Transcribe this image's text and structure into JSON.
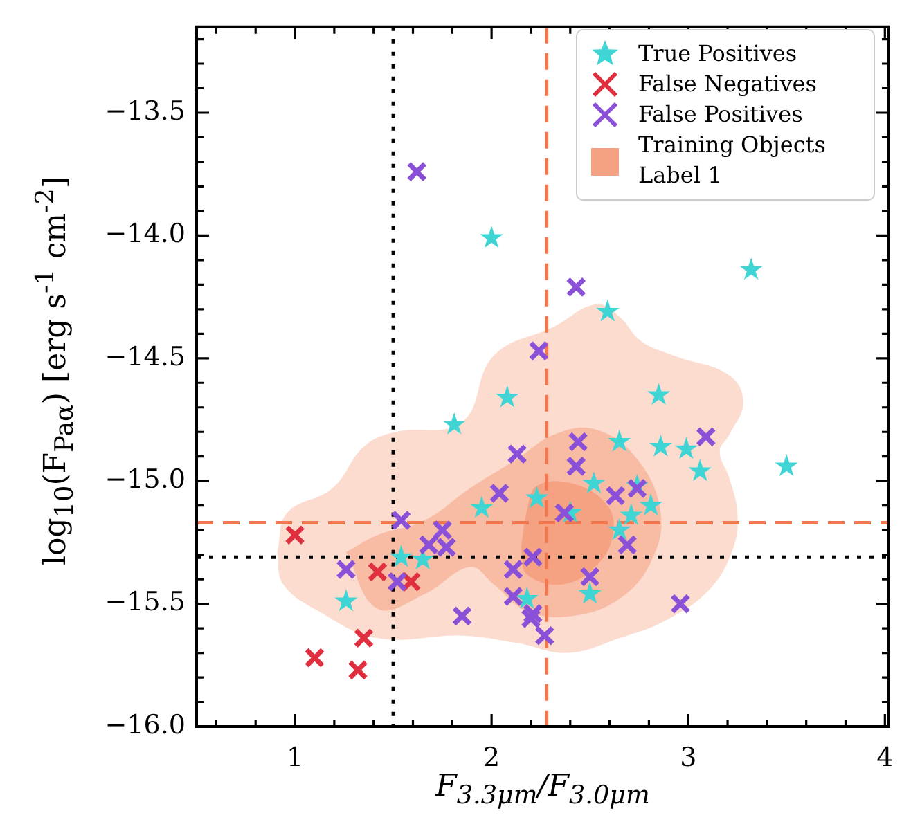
{
  "chart_data": {
    "type": "scatter",
    "xlabel": "F$_{3.3μm}$/F$_{3.0μm}$",
    "ylabel": "log$_{10}$(F$_{Paα}$) [erg s$^{-1}$ cm$^{-2}$]",
    "xlim": [
      0.5,
      4.02
    ],
    "ylim": [
      -16.0,
      -13.15
    ],
    "xticks": [
      {
        "value": 0.6,
        "label": null
      },
      {
        "value": 0.8,
        "label": null
      },
      1,
      {
        "value": 1.2,
        "label": null
      },
      {
        "value": 1.4,
        "label": null
      },
      {
        "value": 1.6,
        "label": null
      },
      {
        "value": 1.8,
        "label": null
      },
      2,
      {
        "value": 2.2,
        "label": null
      },
      {
        "value": 2.4,
        "label": null
      },
      {
        "value": 2.6,
        "label": null
      },
      {
        "value": 2.8,
        "label": null
      },
      3,
      {
        "value": 3.2,
        "label": null
      },
      {
        "value": 3.4,
        "label": null
      },
      {
        "value": 3.6,
        "label": null
      },
      {
        "value": 3.8,
        "label": null
      },
      4
    ],
    "yticks": [
      {
        "value": -16.0,
        "label": "−16.0"
      },
      {
        "value": -15.9,
        "label": null
      },
      {
        "value": -15.8,
        "label": null
      },
      {
        "value": -15.7,
        "label": null
      },
      {
        "value": -15.6,
        "label": null
      },
      {
        "value": -15.5,
        "label": "−15.5"
      },
      {
        "value": -15.4,
        "label": null
      },
      {
        "value": -15.3,
        "label": null
      },
      {
        "value": -15.2,
        "label": null
      },
      {
        "value": -15.1,
        "label": null
      },
      {
        "value": -15.0,
        "label": "−15.0"
      },
      {
        "value": -14.9,
        "label": null
      },
      {
        "value": -14.8,
        "label": null
      },
      {
        "value": -14.7,
        "label": null
      },
      {
        "value": -14.6,
        "label": null
      },
      {
        "value": -14.5,
        "label": "−14.5"
      },
      {
        "value": -14.4,
        "label": null
      },
      {
        "value": -14.3,
        "label": null
      },
      {
        "value": -14.2,
        "label": null
      },
      {
        "value": -14.1,
        "label": null
      },
      {
        "value": -14.0,
        "label": "−14.0"
      },
      {
        "value": -13.9,
        "label": null
      },
      {
        "value": -13.8,
        "label": null
      },
      {
        "value": -13.7,
        "label": null
      },
      {
        "value": -13.6,
        "label": null
      },
      {
        "value": -13.5,
        "label": "−13.5"
      },
      {
        "value": -13.4,
        "label": null
      },
      {
        "value": -13.3,
        "label": null
      },
      {
        "value": -13.2,
        "label": null
      }
    ],
    "legend": "top right",
    "grid": false,
    "ref_lines": [
      {
        "axis": "x",
        "value": 1.5,
        "color": "#000000",
        "line_style": "dotted"
      },
      {
        "axis": "y",
        "value": -15.31,
        "color": "#000000",
        "line_style": "dotted"
      },
      {
        "axis": "x",
        "value": 2.28,
        "color": "#f07850",
        "line_style": "dashed"
      },
      {
        "axis": "y",
        "value": -15.17,
        "color": "#f07850",
        "line_style": "dashed"
      }
    ],
    "series": [
      {
        "type": "area",
        "color": "#fcdccf",
        "x": [
          0.91,
          0.96,
          1.19,
          1.35,
          1.51,
          1.85,
          2.01,
          2.32,
          2.53,
          2.65,
          2.76,
          2.93,
          3.21,
          3.28,
          3.21,
          3.16,
          3.21,
          3.25,
          3.23,
          3.11,
          2.88,
          2.65,
          2.39,
          2.13,
          1.85,
          1.42,
          1.12,
          0.94
        ],
        "values": [
          -15.29,
          -15.13,
          -15.03,
          -14.86,
          -14.8,
          -14.76,
          -14.49,
          -14.37,
          -14.28,
          -14.33,
          -14.43,
          -14.49,
          -14.57,
          -14.68,
          -14.81,
          -14.88,
          -14.99,
          -15.13,
          -15.27,
          -15.44,
          -15.57,
          -15.64,
          -15.7,
          -15.66,
          -15.63,
          -15.64,
          -15.53,
          -15.42
        ]
      },
      {
        "type": "area",
        "color": "#f8bca5",
        "x": [
          1.26,
          1.42,
          1.66,
          1.89,
          2.13,
          2.32,
          2.53,
          2.74,
          2.86,
          2.81,
          2.65,
          2.41,
          2.18,
          2.01,
          1.89,
          1.66,
          1.42
        ],
        "values": [
          -15.29,
          -15.22,
          -15.16,
          -15.03,
          -14.91,
          -14.81,
          -14.79,
          -14.91,
          -15.13,
          -15.33,
          -15.48,
          -15.55,
          -15.53,
          -15.42,
          -15.35,
          -15.46,
          -15.52
        ]
      },
      {
        "type": "area",
        "name": "Training Objects Label 1",
        "color": "#f4a282",
        "x": [
          2.15,
          2.18,
          2.23,
          2.41,
          2.58,
          2.62,
          2.55,
          2.37,
          2.18
        ],
        "values": [
          -15.27,
          -15.12,
          -15.02,
          -15.01,
          -15.09,
          -15.2,
          -15.33,
          -15.42,
          -15.38
        ]
      },
      {
        "name": "True Positives",
        "color": "#40d5d5",
        "marker": "star",
        "x": [
          2.0,
          3.5,
          3.32,
          2.59,
          2.85,
          2.65,
          2.86,
          2.99,
          3.06,
          2.52,
          2.74,
          2.81,
          2.71,
          2.65,
          2.5,
          2.23,
          2.4,
          1.81,
          1.95,
          1.54,
          1.65,
          1.26,
          2.18,
          2.08
        ],
        "values": [
          -14.01,
          -14.94,
          -14.14,
          -14.31,
          -14.65,
          -14.84,
          -14.86,
          -14.87,
          -14.96,
          -15.01,
          -15.02,
          -15.1,
          -15.14,
          -15.2,
          -15.46,
          -15.07,
          -15.13,
          -14.77,
          -15.11,
          -15.31,
          -15.32,
          -15.49,
          -15.48,
          -14.66
        ]
      },
      {
        "name": "False Negatives",
        "color": "#e03040",
        "marker": "cross",
        "x": [
          1.0,
          1.42,
          1.59,
          1.1,
          1.35,
          1.32
        ],
        "values": [
          -15.22,
          -15.37,
          -15.41,
          -15.72,
          -15.64,
          -15.77
        ]
      },
      {
        "name": "False Positives",
        "color": "#8a50d8",
        "marker": "cross",
        "x": [
          1.62,
          2.24,
          2.43,
          3.09,
          2.44,
          2.43,
          2.63,
          2.74,
          2.37,
          2.69,
          2.21,
          2.5,
          2.96,
          2.21,
          2.27,
          2.13,
          2.04,
          1.54,
          1.75,
          1.68,
          1.77,
          1.26,
          1.52,
          1.85,
          2.11,
          2.11,
          2.2
        ],
        "values": [
          -13.74,
          -14.47,
          -14.21,
          -14.82,
          -14.84,
          -14.94,
          -15.06,
          -15.03,
          -15.13,
          -15.26,
          -15.31,
          -15.39,
          -15.5,
          -15.54,
          -15.63,
          -14.89,
          -15.05,
          -15.16,
          -15.2,
          -15.26,
          -15.27,
          -15.36,
          -15.41,
          -15.55,
          -15.36,
          -15.47,
          -15.56
        ]
      }
    ]
  }
}
